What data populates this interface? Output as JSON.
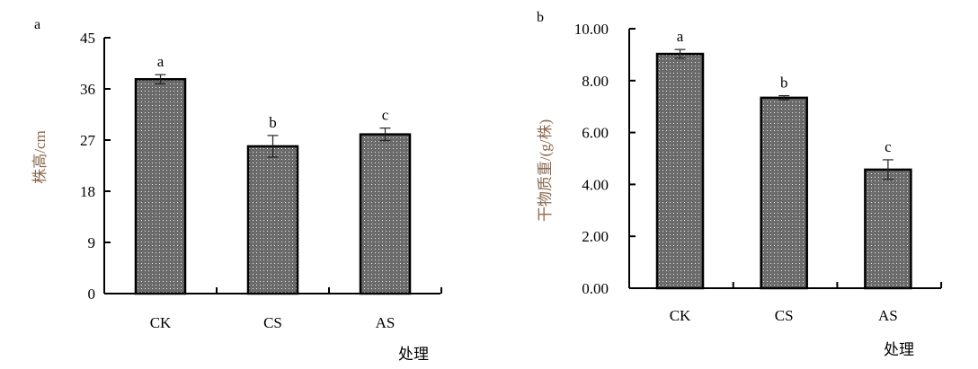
{
  "chart_data": [
    {
      "type": "bar",
      "panel_label": "a",
      "title": "",
      "xlabel": "处理",
      "ylabel": "株高/cm",
      "categories": [
        "CK",
        "CS",
        "AS"
      ],
      "values": [
        37.7,
        25.9,
        28.0
      ],
      "errors": [
        0.8,
        1.9,
        1.1
      ],
      "significance": [
        "a",
        "b",
        "c"
      ],
      "ylim": [
        0,
        45
      ],
      "yticks": [
        "0",
        "9",
        "18",
        "27",
        "36",
        "45"
      ],
      "ytick_values": [
        0,
        9,
        18,
        27,
        36,
        45
      ],
      "grid": false,
      "bar_color": "#6b6b6b"
    },
    {
      "type": "bar",
      "panel_label": "b",
      "title": "",
      "xlabel": "处理",
      "ylabel": "干物质重/(g/株)",
      "categories": [
        "CK",
        "CS",
        "AS"
      ],
      "values": [
        9.03,
        7.34,
        4.57
      ],
      "errors": [
        0.17,
        0.08,
        0.38
      ],
      "significance": [
        "a",
        "b",
        "c"
      ],
      "ylim": [
        0,
        10
      ],
      "yticks": [
        "0.00",
        "2.00",
        "4.00",
        "6.00",
        "8.00",
        "10.00"
      ],
      "ytick_values": [
        0,
        2,
        4,
        6,
        8,
        10
      ],
      "grid": false,
      "bar_color": "#6b6b6b"
    }
  ]
}
